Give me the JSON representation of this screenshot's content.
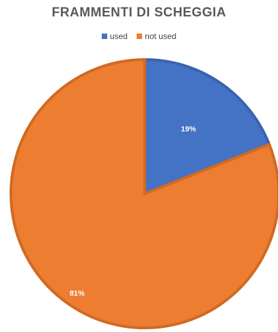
{
  "chart_data": {
    "type": "pie",
    "title": "FRAMMENTI DI SCHEGGIA",
    "legend_position": "top",
    "slices": [
      {
        "name": "used",
        "value": 19,
        "label": "19%",
        "color": "#4472C4"
      },
      {
        "name": "not used",
        "value": 81,
        "label": "81%",
        "color": "#ED7D31"
      }
    ]
  }
}
